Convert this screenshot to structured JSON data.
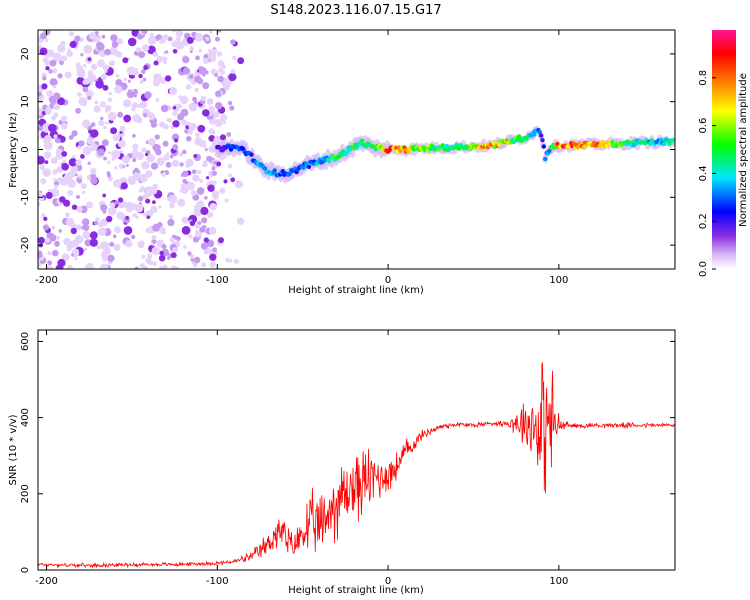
{
  "title": "S148.2023.116.07.15.G17",
  "chart_data": [
    {
      "type": "heatmap",
      "xlabel": "Height of straight line (km)",
      "ylabel": "Frequency (Hz)",
      "xlim": [
        -205,
        168
      ],
      "ylim": [
        -25,
        25
      ],
      "xticks": [
        -200,
        -100,
        0,
        100
      ],
      "yticks": [
        -20,
        -10,
        0,
        10,
        20
      ],
      "noise_region": {
        "x": [
          -205,
          -100
        ],
        "freq": [
          -25,
          25
        ]
      },
      "ridge": {
        "x": [
          -100,
          -95,
          -90,
          -85,
          -80,
          -75,
          -70,
          -65,
          -60,
          -55,
          -50,
          -45,
          -40,
          -35,
          -30,
          -25,
          -20,
          -15,
          -10,
          -5,
          0,
          10,
          20,
          40,
          60,
          80,
          88,
          90,
          92,
          95,
          100,
          120,
          140,
          160,
          168
        ],
        "freq": [
          0,
          0.5,
          0.5,
          0,
          -1.5,
          -3.5,
          -4.5,
          -5,
          -5,
          -4.5,
          -3.5,
          -3,
          -2.5,
          -2,
          -1.5,
          -0.5,
          0.5,
          1.5,
          0.5,
          0.2,
          0,
          0,
          0.2,
          0.5,
          0.8,
          2.5,
          4,
          3,
          -1.5,
          0.5,
          0.8,
          1,
          1.3,
          1.6,
          1.6
        ],
        "amplitude": [
          0.2,
          0.25,
          0.3,
          0.3,
          0.3,
          0.35,
          0.4,
          0.35,
          0.3,
          0.3,
          0.3,
          0.35,
          0.4,
          0.45,
          0.55,
          0.5,
          0.5,
          0.5,
          0.55,
          0.6,
          0.9,
          0.85,
          0.6,
          0.5,
          0.85,
          0.5,
          0.35,
          0.2,
          0.3,
          0.4,
          0.9,
          0.85,
          0.5,
          0.4,
          0.5
        ]
      },
      "colorbar": {
        "label": "Normalized spectral amplitude",
        "range": [
          0,
          1
        ],
        "ticks": [
          "0.0",
          "0.2",
          "0.4",
          "0.6",
          "0.8"
        ],
        "colors": [
          "#ffffff",
          "#8a2be2",
          "#0000ff",
          "#00e5ff",
          "#00ff00",
          "#ffff00",
          "#ff8000",
          "#ff0000",
          "#ff1493"
        ]
      }
    },
    {
      "type": "line",
      "xlabel": "Height of straight line (km)",
      "ylabel": "SNR (10 * v/v)",
      "xlim": [
        -205,
        168
      ],
      "ylim": [
        0,
        630
      ],
      "xticks": [
        -200,
        -100,
        0,
        100
      ],
      "yticks": [
        0,
        200,
        400,
        600
      ],
      "color": "#ff0000",
      "series": [
        {
          "name": "SNR",
          "x": [
            -205,
            -180,
            -150,
            -120,
            -100,
            -90,
            -80,
            -75,
            -70,
            -65,
            -62,
            -58,
            -55,
            -50,
            -45,
            -40,
            -35,
            -30,
            -25,
            -20,
            -15,
            -10,
            -5,
            0,
            5,
            10,
            15,
            20,
            25,
            30,
            35,
            40,
            50,
            60,
            70,
            80,
            85,
            90,
            95,
            100,
            105,
            110,
            120,
            140,
            168
          ],
          "y": [
            15,
            12,
            14,
            15,
            18,
            22,
            35,
            50,
            70,
            100,
            95,
            70,
            60,
            100,
            120,
            110,
            150,
            180,
            200,
            220,
            230,
            240,
            245,
            250,
            270,
            310,
            330,
            355,
            365,
            375,
            380,
            382,
            380,
            385,
            385,
            390,
            380,
            380,
            385,
            380,
            380,
            378,
            380,
            380,
            380
          ],
          "spread": [
            6,
            6,
            6,
            6,
            6,
            8,
            15,
            30,
            40,
            60,
            60,
            50,
            40,
            80,
            100,
            100,
            120,
            120,
            120,
            120,
            110,
            100,
            80,
            60,
            50,
            40,
            30,
            15,
            12,
            10,
            10,
            8,
            8,
            8,
            10,
            80,
            120,
            220,
            220,
            40,
            10,
            8,
            8,
            8,
            8
          ]
        }
      ]
    }
  ]
}
